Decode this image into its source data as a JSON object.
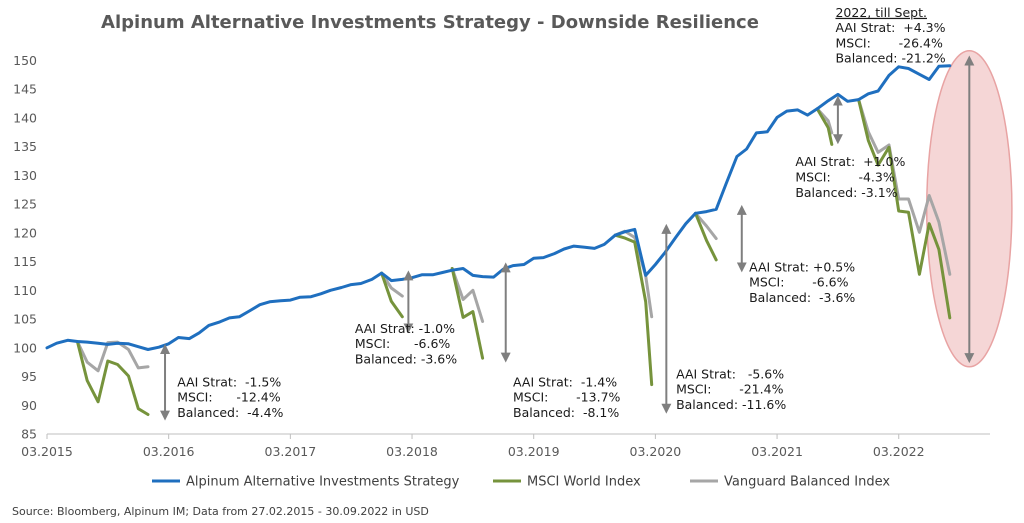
{
  "chart_data": {
    "type": "line",
    "title": "Alpinum Alternative Investments Strategy - Downside Resilience",
    "xlabel": "",
    "ylabel": "",
    "ylim": [
      85,
      150
    ],
    "yticks": [
      85,
      90,
      95,
      100,
      105,
      110,
      115,
      120,
      125,
      130,
      135,
      140,
      145,
      150
    ],
    "xlim": [
      2015.0,
      2022.75
    ],
    "xticks": [
      {
        "label": "03.2015",
        "x": 2015.0
      },
      {
        "label": "03.2016",
        "x": 2016.0
      },
      {
        "label": "03.2017",
        "x": 2017.0
      },
      {
        "label": "03.2018",
        "x": 2018.0
      },
      {
        "label": "03.2019",
        "x": 2019.0
      },
      {
        "label": "03.2020",
        "x": 2020.0
      },
      {
        "label": "03.2021",
        "x": 2021.0
      },
      {
        "label": "03.2022",
        "x": 2022.0
      }
    ],
    "series": [
      {
        "name": "Alpinum Alternative Investments Strategy",
        "color": "#1f6fbf",
        "points": [
          [
            2015.0,
            100.0
          ],
          [
            2015.08,
            100.8
          ],
          [
            2015.17,
            101.3
          ],
          [
            2015.25,
            101.1
          ],
          [
            2015.33,
            101.0
          ],
          [
            2015.42,
            100.8
          ],
          [
            2015.5,
            100.6
          ],
          [
            2015.58,
            100.8
          ],
          [
            2015.67,
            100.7
          ],
          [
            2015.75,
            100.2
          ],
          [
            2015.83,
            99.7
          ],
          [
            2015.92,
            100.1
          ],
          [
            2016.0,
            100.7
          ],
          [
            2016.08,
            101.8
          ],
          [
            2016.17,
            101.6
          ],
          [
            2016.25,
            102.6
          ],
          [
            2016.33,
            103.9
          ],
          [
            2016.42,
            104.5
          ],
          [
            2016.5,
            105.2
          ],
          [
            2016.58,
            105.4
          ],
          [
            2016.67,
            106.5
          ],
          [
            2016.75,
            107.5
          ],
          [
            2016.83,
            108.0
          ],
          [
            2016.92,
            108.2
          ],
          [
            2017.0,
            108.3
          ],
          [
            2017.08,
            108.8
          ],
          [
            2017.17,
            108.9
          ],
          [
            2017.25,
            109.4
          ],
          [
            2017.33,
            110.0
          ],
          [
            2017.42,
            110.5
          ],
          [
            2017.5,
            111.0
          ],
          [
            2017.58,
            111.2
          ],
          [
            2017.67,
            111.9
          ],
          [
            2017.75,
            113.0
          ],
          [
            2017.83,
            111.7
          ],
          [
            2017.92,
            111.9
          ],
          [
            2018.0,
            112.2
          ],
          [
            2018.08,
            112.7
          ],
          [
            2018.17,
            112.7
          ],
          [
            2018.25,
            113.1
          ],
          [
            2018.33,
            113.5
          ],
          [
            2018.42,
            113.8
          ],
          [
            2018.5,
            112.6
          ],
          [
            2018.58,
            112.4
          ],
          [
            2018.67,
            112.3
          ],
          [
            2018.75,
            113.7
          ],
          [
            2018.83,
            114.3
          ],
          [
            2018.92,
            114.5
          ],
          [
            2019.0,
            115.6
          ],
          [
            2019.08,
            115.7
          ],
          [
            2019.17,
            116.4
          ],
          [
            2019.25,
            117.2
          ],
          [
            2019.33,
            117.7
          ],
          [
            2019.42,
            117.5
          ],
          [
            2019.5,
            117.3
          ],
          [
            2019.58,
            118.0
          ],
          [
            2019.67,
            119.6
          ],
          [
            2019.75,
            120.2
          ],
          [
            2019.83,
            120.6
          ],
          [
            2019.92,
            112.6
          ],
          [
            2020.0,
            114.5
          ],
          [
            2020.08,
            116.6
          ],
          [
            2020.17,
            119.3
          ],
          [
            2020.25,
            121.6
          ],
          [
            2020.33,
            123.4
          ],
          [
            2020.42,
            123.7
          ],
          [
            2020.5,
            124.1
          ],
          [
            2020.58,
            128.5
          ],
          [
            2020.67,
            133.3
          ],
          [
            2020.75,
            134.6
          ],
          [
            2020.83,
            137.4
          ],
          [
            2020.92,
            137.6
          ],
          [
            2021.0,
            140.1
          ],
          [
            2021.08,
            141.2
          ],
          [
            2021.17,
            141.4
          ],
          [
            2021.25,
            140.5
          ],
          [
            2021.33,
            141.6
          ],
          [
            2021.42,
            143.0
          ],
          [
            2021.5,
            144.1
          ],
          [
            2021.58,
            142.9
          ],
          [
            2021.67,
            143.2
          ],
          [
            2021.75,
            144.2
          ],
          [
            2021.83,
            144.7
          ],
          [
            2021.92,
            147.4
          ],
          [
            2022.0,
            148.9
          ],
          [
            2022.08,
            148.6
          ],
          [
            2022.17,
            147.6
          ],
          [
            2022.25,
            146.7
          ],
          [
            2022.33,
            149.0
          ],
          [
            2022.42,
            149.1
          ]
        ]
      },
      {
        "name": "MSCI World Index",
        "color": "#76933c",
        "segments": [
          [
            [
              2015.25,
              101.1
            ],
            [
              2015.33,
              94.3
            ],
            [
              2015.42,
              90.6
            ],
            [
              2015.5,
              97.7
            ],
            [
              2015.58,
              97.1
            ],
            [
              2015.67,
              95.1
            ],
            [
              2015.75,
              89.4
            ],
            [
              2015.83,
              88.4
            ]
          ],
          [
            [
              2017.75,
              113.0
            ],
            [
              2017.83,
              108.1
            ],
            [
              2017.92,
              105.4
            ]
          ],
          [
            [
              2018.33,
              113.8
            ],
            [
              2018.42,
              105.3
            ],
            [
              2018.5,
              106.3
            ],
            [
              2018.58,
              98.2
            ]
          ],
          [
            [
              2019.67,
              119.6
            ],
            [
              2019.75,
              119.1
            ],
            [
              2019.83,
              118.4
            ],
            [
              2019.92,
              108.0
            ],
            [
              2019.97,
              93.6
            ]
          ],
          [
            [
              2020.33,
              123.4
            ],
            [
              2020.42,
              118.7
            ],
            [
              2020.5,
              115.3
            ]
          ],
          [
            [
              2021.33,
              141.6
            ],
            [
              2021.42,
              138.3
            ],
            [
              2021.45,
              135.4
            ]
          ],
          [
            [
              2021.67,
              143.2
            ],
            [
              2021.75,
              136.1
            ],
            [
              2021.83,
              131.8
            ],
            [
              2021.92,
              134.9
            ],
            [
              2022.0,
              123.8
            ],
            [
              2022.08,
              123.6
            ],
            [
              2022.17,
              112.8
            ],
            [
              2022.25,
              121.6
            ],
            [
              2022.33,
              117.1
            ],
            [
              2022.42,
              105.2
            ]
          ]
        ]
      },
      {
        "name": "Vanguard Balanced Index",
        "color": "#a6a6a6",
        "segments": [
          [
            [
              2015.25,
              101.1
            ],
            [
              2015.33,
              97.5
            ],
            [
              2015.42,
              96.0
            ],
            [
              2015.5,
              100.9
            ],
            [
              2015.58,
              101.0
            ],
            [
              2015.67,
              99.7
            ],
            [
              2015.75,
              96.5
            ],
            [
              2015.83,
              96.7
            ]
          ],
          [
            [
              2017.75,
              113.0
            ],
            [
              2017.83,
              110.4
            ],
            [
              2017.92,
              109.0
            ]
          ],
          [
            [
              2018.33,
              113.8
            ],
            [
              2018.42,
              108.4
            ],
            [
              2018.5,
              110.0
            ],
            [
              2018.58,
              104.6
            ]
          ],
          [
            [
              2019.67,
              119.6
            ],
            [
              2019.75,
              120.3
            ],
            [
              2019.83,
              119.2
            ],
            [
              2019.92,
              112.5
            ],
            [
              2019.97,
              105.4
            ]
          ],
          [
            [
              2020.33,
              123.4
            ],
            [
              2020.42,
              121.2
            ],
            [
              2020.5,
              119.0
            ]
          ],
          [
            [
              2021.33,
              141.6
            ],
            [
              2021.42,
              139.5
            ],
            [
              2021.45,
              137.4
            ]
          ],
          [
            [
              2021.67,
              143.2
            ],
            [
              2021.75,
              137.6
            ],
            [
              2021.83,
              134.0
            ],
            [
              2021.92,
              135.3
            ],
            [
              2022.0,
              125.9
            ],
            [
              2022.08,
              125.9
            ],
            [
              2022.17,
              120.1
            ],
            [
              2022.25,
              126.5
            ],
            [
              2022.33,
              121.9
            ],
            [
              2022.42,
              112.8
            ]
          ]
        ]
      }
    ],
    "drawdown_arrows": [
      {
        "x": 2015.97,
        "from": 99.8,
        "to": 88.2
      },
      {
        "x": 2017.97,
        "from": 112.6,
        "to": 103.4
      },
      {
        "x": 2018.77,
        "from": 114.0,
        "to": 98.3
      },
      {
        "x": 2020.09,
        "from": 120.7,
        "to": 89.4
      },
      {
        "x": 2020.71,
        "from": 124.0,
        "to": 114.0
      },
      {
        "x": 2021.5,
        "from": 143.0,
        "to": 136.3
      },
      {
        "x": 2022.58,
        "from": 150.0,
        "to": 98.2
      }
    ],
    "annotations": [
      {
        "lines": [
          "AAI Strat:  -1.5%",
          "MSCI:      -12.4%",
          "Balanced:  -4.4%"
        ],
        "anchor_x": 2016.07,
        "anchor_y": 93.3
      },
      {
        "lines": [
          "AAI Strat: -1.0%",
          "MSCI:      -6.6%",
          "Balanced: -3.6%"
        ],
        "anchor_x": 2017.53,
        "anchor_y": 102.6
      },
      {
        "lines": [
          "AAI Strat:  -1.4%",
          "MSCI:       -13.7%",
          "Balanced:  -8.1%"
        ],
        "anchor_x": 2018.83,
        "anchor_y": 93.3
      },
      {
        "lines": [
          "AAI Strat:   -5.6%",
          "MSCI:       -21.4%",
          "Balanced: -11.6%"
        ],
        "anchor_x": 2020.17,
        "anchor_y": 94.7
      },
      {
        "lines": [
          "AAI Strat: +0.5%",
          "MSCI:       -6.6%",
          "Balanced:  -3.6%"
        ],
        "anchor_x": 2020.77,
        "anchor_y": 113.3
      },
      {
        "lines": [
          "AAI Strat:  +1.0%",
          "MSCI:       -4.3%",
          "Balanced: -3.1%"
        ],
        "anchor_x": 2021.15,
        "anchor_y": 131.6
      },
      {
        "lines": [
          "2022, till Sept.",
          "AAI Strat:  +4.3%",
          "MSCI:       -26.4%",
          "Balanced: -21.2%"
        ],
        "anchor_x": 2021.48,
        "anchor_y": 157.6,
        "underline_first": true
      }
    ],
    "highlight_ellipse": {
      "center_x": 2022.58,
      "center_y": 124.2,
      "rx_years": 0.35,
      "ry_units": 27.5,
      "color": "#e8a3a3"
    },
    "legend": {
      "position": "bottom",
      "entries": [
        {
          "label": "Alpinum Alternative Investments Strategy",
          "color": "#1f6fbf"
        },
        {
          "label": "MSCI World Index",
          "color": "#76933c"
        },
        {
          "label": "Vanguard Balanced Index",
          "color": "#a6a6a6"
        }
      ]
    },
    "source": "Source: Bloomberg, Alpinum IM; Data from 27.02.2015 - 30.09.2022 in USD"
  }
}
